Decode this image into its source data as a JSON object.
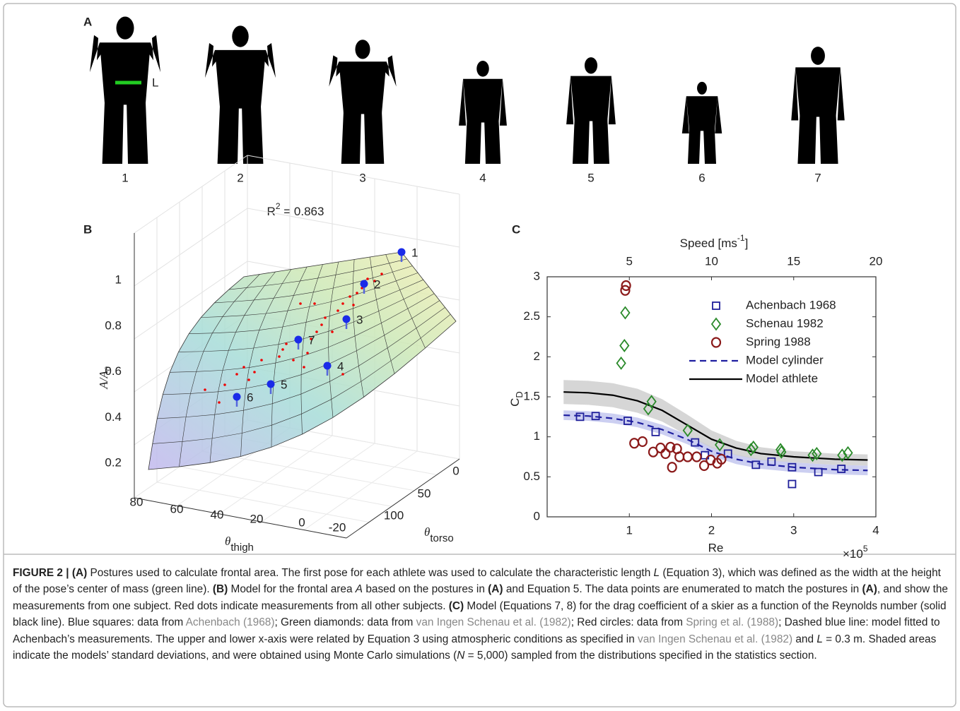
{
  "panel_a": {
    "label": "A",
    "length_label": "L",
    "pose_labels": [
      "1",
      "2",
      "3",
      "4",
      "5",
      "6",
      "7"
    ]
  },
  "panel_b": {
    "label": "B",
    "title_main": "R",
    "title_sup": "2",
    "title_rest": " = 0.863",
    "zlabel_main": "A/A",
    "zlabel_sub": "0",
    "zticks": [
      0.2,
      0.4,
      0.6,
      0.8,
      1
    ],
    "thigh_symbol": "θ",
    "thigh_sub": "thigh",
    "thigh_ticks": [
      80,
      60,
      40,
      20,
      0,
      -20
    ],
    "torso_symbol": "θ",
    "torso_sub": "torso",
    "torso_ticks": [
      0,
      50,
      100
    ],
    "point_labels": [
      "1",
      "2",
      "3",
      "4",
      "5",
      "6",
      "7"
    ]
  },
  "chart_data": {
    "type": "scatter",
    "panel_label": "C",
    "x2label_main": "Speed [ms",
    "x2label_sup": "-1",
    "x2label_end": "]",
    "xlabel": "Re",
    "x_multiplier": "×10",
    "x_multiplier_exp": "5",
    "ylabel_main": "C",
    "ylabel_sub": "D",
    "xlim": [
      0,
      4
    ],
    "xticks": [
      1,
      2,
      3,
      4
    ],
    "x2lim": [
      0,
      20
    ],
    "x2ticks": [
      5,
      10,
      15,
      20
    ],
    "ylim": [
      0,
      3
    ],
    "yticks": [
      0,
      0.5,
      1,
      1.5,
      2,
      2.5,
      3
    ],
    "legend": "upper right",
    "series": [
      {
        "name": "Achenbach 1968",
        "kind": "marker",
        "marker": "square",
        "color": "#1f1f9a",
        "x": [
          0.4,
          0.59,
          0.98,
          1.32,
          1.8,
          1.92,
          2.2,
          2.54,
          2.73,
          2.98,
          2.98,
          3.3,
          3.58
        ],
        "values": [
          1.25,
          1.26,
          1.2,
          1.06,
          0.93,
          0.77,
          0.79,
          0.65,
          0.69,
          0.62,
          0.41,
          0.56,
          0.6
        ]
      },
      {
        "name": "Schenau 1982",
        "kind": "marker",
        "marker": "diamond",
        "color": "#2a8a2a",
        "x": [
          0.9,
          0.94,
          0.95,
          1.23,
          1.27,
          1.71,
          2.1,
          2.48,
          2.51,
          2.84,
          2.85,
          3.23,
          3.28,
          3.59,
          3.66
        ],
        "values": [
          1.92,
          2.14,
          2.55,
          1.35,
          1.44,
          1.08,
          0.9,
          0.84,
          0.87,
          0.84,
          0.81,
          0.77,
          0.79,
          0.77,
          0.8
        ]
      },
      {
        "name": "Spring 1988",
        "kind": "marker",
        "marker": "circle",
        "color": "#8b1a1a",
        "x": [
          0.95,
          0.96,
          1.06,
          1.16,
          1.29,
          1.38,
          1.44,
          1.5,
          1.52,
          1.58,
          1.61,
          1.71,
          1.82,
          1.91,
          1.99,
          2.07,
          2.12
        ],
        "values": [
          2.83,
          2.89,
          0.92,
          0.94,
          0.81,
          0.86,
          0.79,
          0.87,
          0.62,
          0.85,
          0.75,
          0.75,
          0.75,
          0.64,
          0.71,
          0.67,
          0.72
        ]
      },
      {
        "name": "Model cylinder",
        "kind": "line",
        "dash": true,
        "color": "#1f1fa0",
        "band_color": "#c3c7ee",
        "x": [
          0.2,
          0.5,
          0.8,
          1.1,
          1.4,
          1.7,
          2.0,
          2.3,
          2.6,
          3.0,
          3.5,
          3.9
        ],
        "values": [
          1.27,
          1.26,
          1.23,
          1.18,
          1.09,
          0.97,
          0.82,
          0.72,
          0.66,
          0.62,
          0.59,
          0.58
        ],
        "upper": [
          1.33,
          1.32,
          1.29,
          1.24,
          1.15,
          1.03,
          0.88,
          0.78,
          0.72,
          0.68,
          0.65,
          0.64
        ],
        "lower": [
          1.21,
          1.2,
          1.17,
          1.12,
          1.03,
          0.91,
          0.76,
          0.66,
          0.6,
          0.56,
          0.53,
          0.52
        ]
      },
      {
        "name": "Model athlete",
        "kind": "line",
        "dash": false,
        "color": "#000000",
        "band_color": "#cfcfcf",
        "x": [
          0.2,
          0.5,
          0.8,
          1.1,
          1.4,
          1.7,
          2.0,
          2.3,
          2.6,
          3.0,
          3.5,
          3.9
        ],
        "values": [
          1.56,
          1.55,
          1.52,
          1.45,
          1.33,
          1.15,
          0.97,
          0.86,
          0.79,
          0.75,
          0.72,
          0.71
        ],
        "upper": [
          1.71,
          1.7,
          1.67,
          1.6,
          1.47,
          1.28,
          1.08,
          0.95,
          0.87,
          0.82,
          0.79,
          0.78
        ],
        "lower": [
          1.41,
          1.4,
          1.37,
          1.3,
          1.19,
          1.02,
          0.86,
          0.77,
          0.71,
          0.68,
          0.65,
          0.64
        ]
      }
    ]
  },
  "caption": [
    {
      "text": "FIGURE 2 | (A)",
      "style": "bold"
    },
    {
      "text": " Postures used to calculate frontal area. The first pose for each athlete was used to calculate the characteristic length ",
      "style": "plain"
    },
    {
      "text": "L",
      "style": "italic"
    },
    {
      "text": " (Equation 3), which was defined as the width at the height of the pose’s center of mass (green line). ",
      "style": "plain"
    },
    {
      "text": "(B)",
      "style": "bold"
    },
    {
      "text": " Model for the frontal area ",
      "style": "plain"
    },
    {
      "text": "A",
      "style": "italic"
    },
    {
      "text": " based on the postures in ",
      "style": "plain"
    },
    {
      "text": "(A)",
      "style": "bold"
    },
    {
      "text": " and Equation 5. The data points are enumerated to match the postures in ",
      "style": "plain"
    },
    {
      "text": "(A)",
      "style": "bold"
    },
    {
      "text": ", and show the measurements from one subject. Red dots indicate measurements from all other subjects. ",
      "style": "plain"
    },
    {
      "text": "(C)",
      "style": "bold"
    },
    {
      "text": " Model (Equations 7,  8) for the drag coefficient of a skier as a function of the Reynolds number (solid black line). Blue squares: data from ",
      "style": "plain"
    },
    {
      "text": "Achenbach (1968)",
      "style": "link"
    },
    {
      "text": "; Green diamonds: data from ",
      "style": "plain"
    },
    {
      "text": "van Ingen Schenau et al. (1982)",
      "style": "link"
    },
    {
      "text": "; Red circles: data from ",
      "style": "plain"
    },
    {
      "text": "Spring et al. (1988)",
      "style": "link"
    },
    {
      "text": "; Dashed blue line: model fitted to Achenbach’s measurements. The upper and lower x-axis were related by Equation 3 using atmospheric conditions as specified in ",
      "style": "plain"
    },
    {
      "text": "van Ingen Schenau et al. (1982)",
      "style": "link"
    },
    {
      "text": " and ",
      "style": "plain"
    },
    {
      "text": "L",
      "style": "italic"
    },
    {
      "text": " = 0.3 m. Shaded areas indicate the models’ standard deviations, and were obtained using Monte Carlo simulations (",
      "style": "plain"
    },
    {
      "text": "N",
      "style": "italic"
    },
    {
      "text": " = 5,000) sampled from the distributions specified in the statistics section.",
      "style": "plain"
    }
  ]
}
